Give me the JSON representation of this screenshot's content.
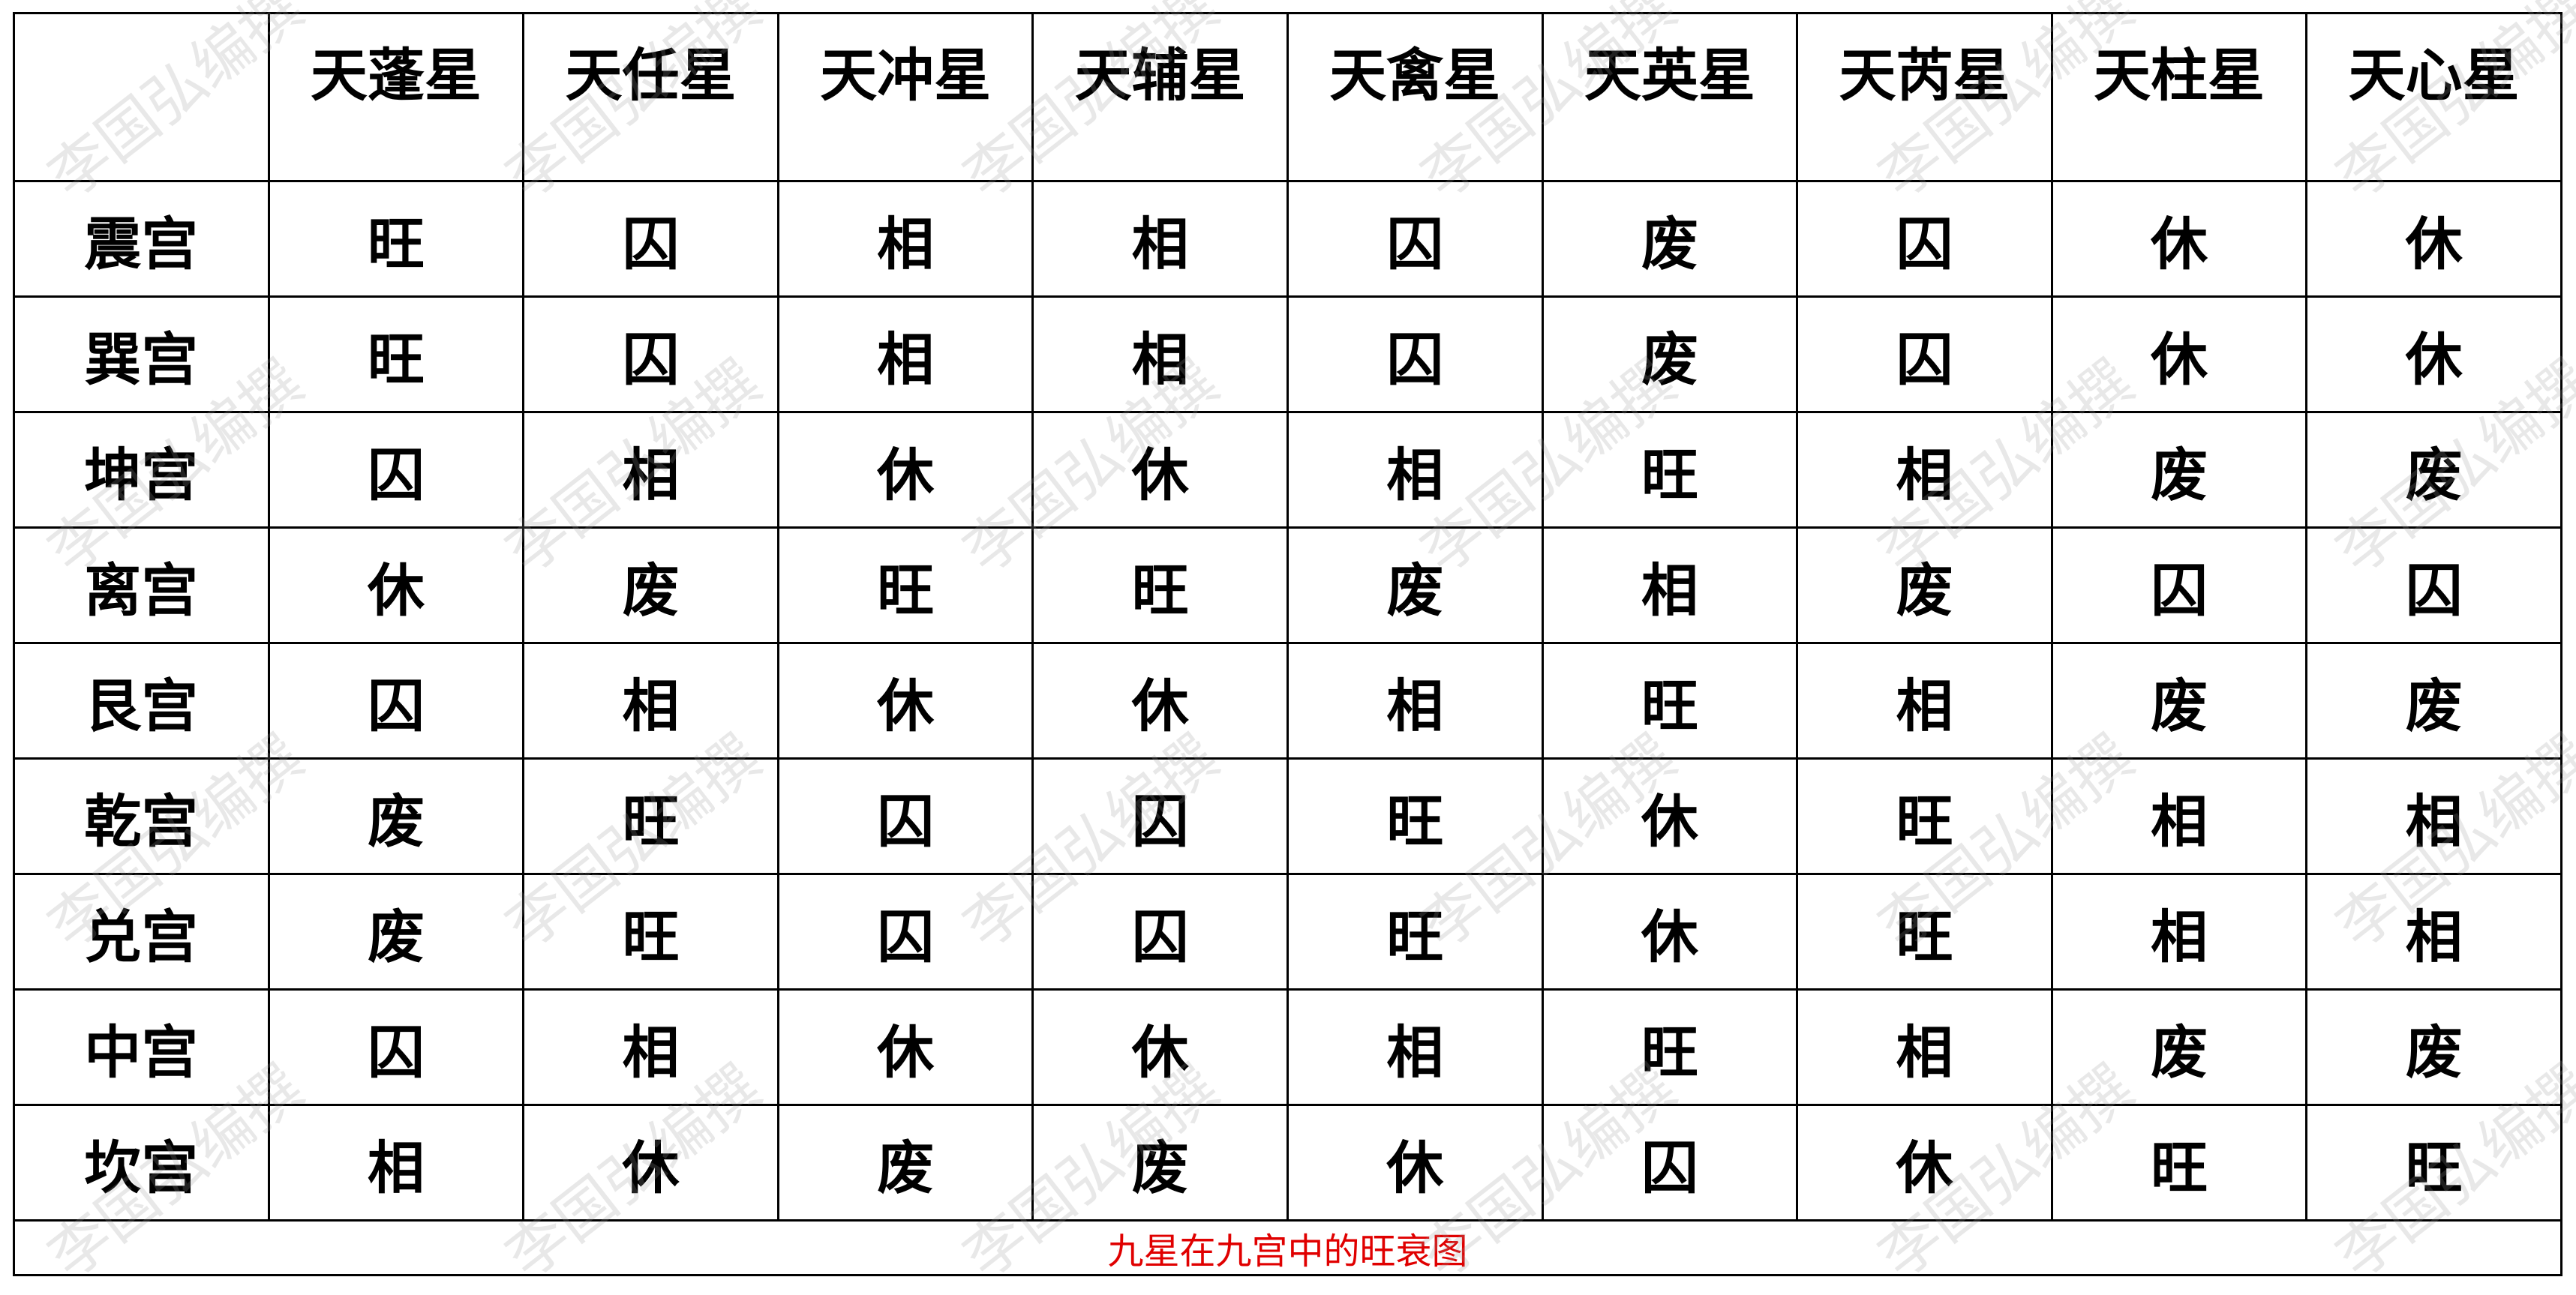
{
  "watermark": "李国弘编撰",
  "header": {
    "corner": "",
    "stars": [
      "天蓬星",
      "天任星",
      "天冲星",
      "天辅星",
      "天禽星",
      "天英星",
      "天芮星",
      "天柱星",
      "天心星"
    ]
  },
  "rows": [
    {
      "palace": "震宫",
      "values": [
        "旺",
        "囚",
        "相",
        "相",
        "囚",
        "废",
        "囚",
        "休",
        "休"
      ]
    },
    {
      "palace": "巽宫",
      "values": [
        "旺",
        "囚",
        "相",
        "相",
        "囚",
        "废",
        "囚",
        "休",
        "休"
      ]
    },
    {
      "palace": "坤宫",
      "values": [
        "囚",
        "相",
        "休",
        "休",
        "相",
        "旺",
        "相",
        "废",
        "废"
      ]
    },
    {
      "palace": "离宫",
      "values": [
        "休",
        "废",
        "旺",
        "旺",
        "废",
        "相",
        "废",
        "囚",
        "囚"
      ]
    },
    {
      "palace": "艮宫",
      "values": [
        "囚",
        "相",
        "休",
        "休",
        "相",
        "旺",
        "相",
        "废",
        "废"
      ]
    },
    {
      "palace": "乾宫",
      "values": [
        "废",
        "旺",
        "囚",
        "囚",
        "旺",
        "休",
        "旺",
        "相",
        "相"
      ]
    },
    {
      "palace": "兑宫",
      "values": [
        "废",
        "旺",
        "囚",
        "囚",
        "旺",
        "休",
        "旺",
        "相",
        "相"
      ]
    },
    {
      "palace": "中宫",
      "values": [
        "囚",
        "相",
        "休",
        "休",
        "相",
        "旺",
        "相",
        "废",
        "废"
      ]
    },
    {
      "palace": "坎宫",
      "values": [
        "相",
        "休",
        "废",
        "废",
        "休",
        "囚",
        "休",
        "旺",
        "旺"
      ]
    }
  ],
  "caption": "九星在九宫中的旺衰图",
  "colors": {
    "caption": "#e00000",
    "grid": "#000000"
  }
}
